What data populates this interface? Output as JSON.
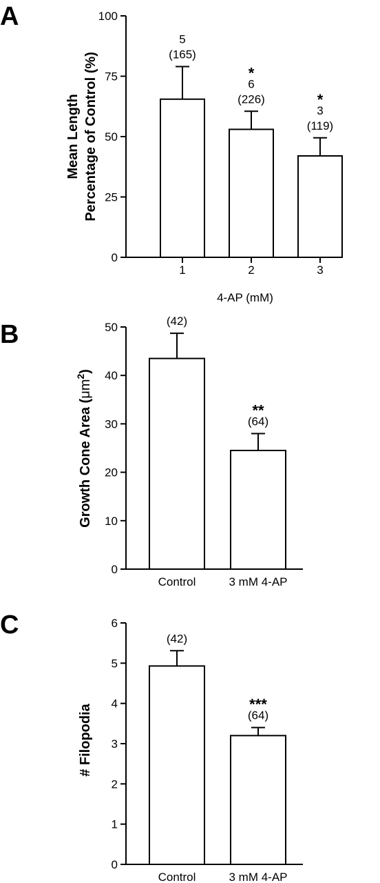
{
  "chart_data": [
    {
      "type": "bar",
      "panel": "A",
      "categories": [
        "1",
        "2",
        "3"
      ],
      "values": [
        65.5,
        53,
        42
      ],
      "errors": [
        13.5,
        7.5,
        7.5
      ],
      "annotations": [
        {
          "lines": [
            "5",
            "(165)"
          ],
          "stars": ""
        },
        {
          "lines": [
            "6",
            "(226)"
          ],
          "stars": "*"
        },
        {
          "lines": [
            "3",
            "(119)"
          ],
          "stars": "*"
        }
      ],
      "ylabel_lines": [
        "Mean Length",
        "Percentage of Control (%)"
      ],
      "xlabel": "4-AP (mM)",
      "ylim": [
        0,
        100
      ],
      "yticks": [
        "0",
        "25",
        "50",
        "75",
        "100"
      ]
    },
    {
      "type": "bar",
      "panel": "B",
      "categories": [
        "Control",
        "3 mM 4-AP"
      ],
      "values": [
        43.5,
        24.5
      ],
      "errors": [
        5.2,
        3.5
      ],
      "annotations": [
        {
          "lines": [
            "(42)"
          ],
          "stars": ""
        },
        {
          "lines": [
            "(64)"
          ],
          "stars": "**"
        }
      ],
      "ylabel": "Growth Cone Area (",
      "ylabel_unit": "μm",
      "ylabel_sup": "2",
      "ylabel_end": ")",
      "xlabel": "",
      "ylim": [
        0,
        50
      ],
      "yticks": [
        "0",
        "10",
        "20",
        "30",
        "40",
        "50"
      ]
    },
    {
      "type": "bar",
      "panel": "C",
      "categories": [
        "Control",
        "3 mM 4-AP"
      ],
      "values": [
        4.93,
        3.2
      ],
      "errors": [
        0.38,
        0.2
      ],
      "annotations": [
        {
          "lines": [
            "(42)"
          ],
          "stars": ""
        },
        {
          "lines": [
            "(64)"
          ],
          "stars": "***"
        }
      ],
      "ylabel": "# Filopodia",
      "xlabel": "",
      "ylim": [
        0,
        6
      ],
      "yticks": [
        "0",
        "1",
        "2",
        "3",
        "4",
        "5",
        "6"
      ]
    }
  ]
}
